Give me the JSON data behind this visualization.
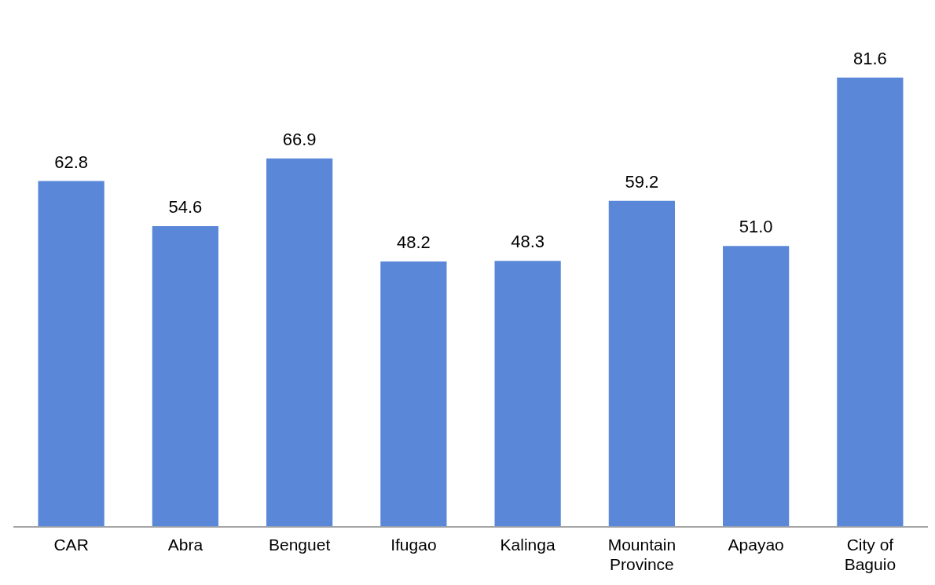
{
  "chart_data": {
    "type": "bar",
    "categories": [
      "CAR",
      "Abra",
      "Benguet",
      "Ifugao",
      "Kalinga",
      "Mountain Province",
      "Apayao",
      "City of Baguio"
    ],
    "values": [
      62.8,
      54.6,
      66.9,
      48.2,
      48.3,
      59.2,
      51.0,
      81.6
    ],
    "value_labels": [
      "62.8",
      "54.6",
      "66.9",
      "48.2",
      "48.3",
      "59.2",
      "51.0",
      "81.6"
    ],
    "color": "#5b87d9",
    "tick_labels": "x",
    "grid": false,
    "legend": false
  }
}
